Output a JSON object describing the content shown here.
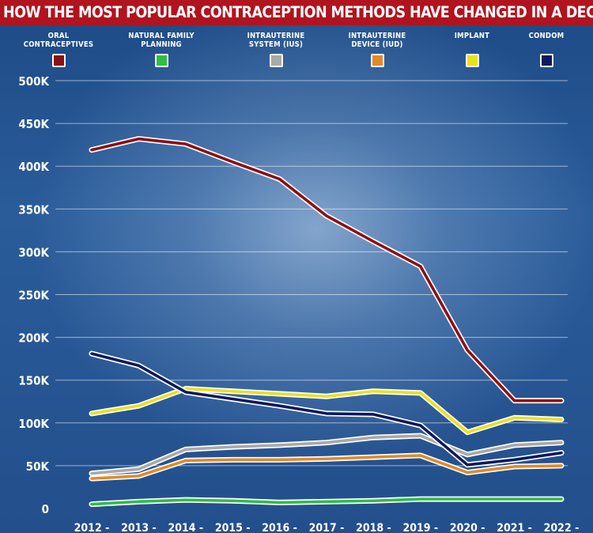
{
  "title": "HOW THE MOST POPULAR CONTRACEPTION METHODS HAVE CHANGED IN A DECADE",
  "legend": [
    {
      "label": "ORAL CONTRACEPTIVES",
      "color": "#8b1016"
    },
    {
      "label": "NATURAL FAMILY PLANNING",
      "color": "#2fbd45"
    },
    {
      "label": "INTRAUTERINE SYSTEM (IUS)",
      "color": "#a9a9a9"
    },
    {
      "label": "INTRAUTERINE DEVICE (IUD)",
      "color": "#e08a2a"
    },
    {
      "label": "IMPLANT",
      "color": "#e8e21c"
    },
    {
      "label": "CONDOM",
      "color": "#0e1a5c"
    }
  ],
  "chart_data": {
    "type": "line",
    "title": "HOW THE MOST POPULAR CONTRACEPTION METHODS HAVE CHANGED IN A DECADE",
    "x": [
      "2012 -",
      "2013 -",
      "2014 -",
      "2015 -",
      "2016 -",
      "2017 -",
      "2018 -",
      "2019 -",
      "2020 -",
      "2021 -",
      "2022 -"
    ],
    "ylim": [
      0,
      500000
    ],
    "yticks": [
      0,
      50000,
      100000,
      150000,
      200000,
      250000,
      300000,
      350000,
      400000,
      450000,
      500000
    ],
    "ytick_labels": [
      "0",
      "50K",
      "100K",
      "150K",
      "200K",
      "250K",
      "300K",
      "350K",
      "400K",
      "450K",
      "500K"
    ],
    "grid": true,
    "legend_position": "top",
    "series": [
      {
        "name": "ORAL CONTRACEPTIVES",
        "color": "#8b1016",
        "values": [
          419000,
          432000,
          426000,
          405000,
          385000,
          342000,
          312000,
          283000,
          185000,
          126000,
          126000
        ]
      },
      {
        "name": "NATURAL FAMILY PLANNING",
        "color": "#2fbd45",
        "values": [
          5000,
          8000,
          10000,
          9000,
          7000,
          8000,
          9000,
          11000,
          11000,
          11000,
          11000
        ]
      },
      {
        "name": "INTRAUTERINE SYSTEM (IUS)",
        "color": "#a9a9a9",
        "values": [
          41000,
          46000,
          69000,
          72000,
          74000,
          77000,
          83000,
          85000,
          63000,
          74000,
          77000
        ]
      },
      {
        "name": "INTRAUTERINE DEVICE (IUD)",
        "color": "#e08a2a",
        "values": [
          35000,
          38000,
          56000,
          57000,
          57000,
          58000,
          60000,
          62000,
          42000,
          49000,
          50000
        ]
      },
      {
        "name": "IMPLANT",
        "color": "#e8e21c",
        "values": [
          111000,
          120000,
          140000,
          137000,
          134000,
          131000,
          137000,
          135000,
          89000,
          106000,
          104000
        ]
      },
      {
        "name": "CONDOM",
        "color": "#0e1a5c",
        "values": [
          181000,
          167000,
          136000,
          128000,
          120000,
          111000,
          110000,
          97000,
          51000,
          57000,
          65000
        ]
      }
    ]
  }
}
